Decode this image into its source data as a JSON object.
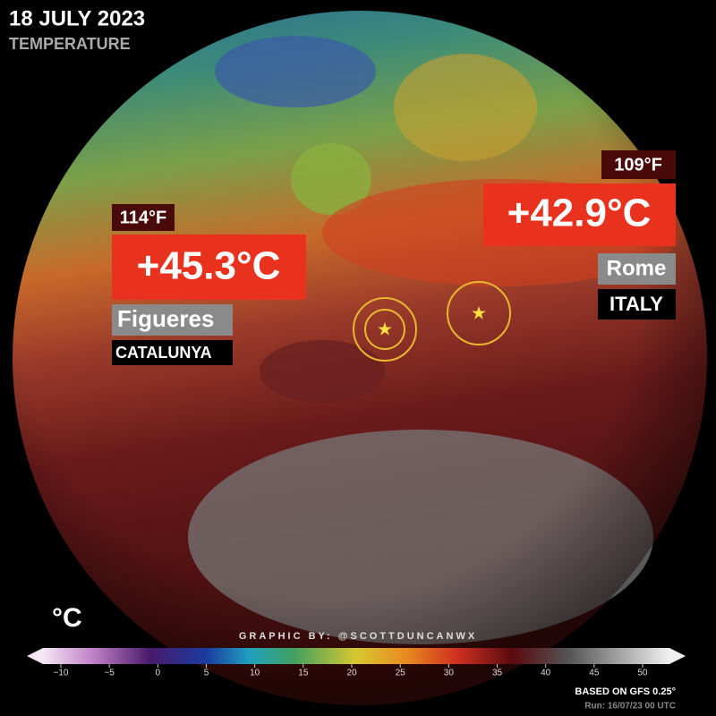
{
  "header": {
    "date": "18 JULY 2023",
    "subtitle": "TEMPERATURE"
  },
  "labels": [
    {
      "fahrenheit": "114°F",
      "celsius": "+45.3°C",
      "city": "Figueres",
      "region": "CATALUNYA"
    },
    {
      "fahrenheit": "109°F",
      "celsius": "+42.9°C",
      "city": "Rome",
      "region": "ITALY"
    }
  ],
  "colorbar": {
    "unit": "°C",
    "ticks": [
      {
        "value": -10,
        "label": "−10"
      },
      {
        "value": -5,
        "label": "−5"
      },
      0,
      5,
      10,
      15,
      20,
      25,
      30,
      35,
      40,
      45,
      50
    ]
  },
  "credit": "GRAPHIC BY: @SCOTTDUNCANWX",
  "source": "BASED ON GFS 0.25°",
  "run": "Run: 16/07/23 00 UTC"
}
